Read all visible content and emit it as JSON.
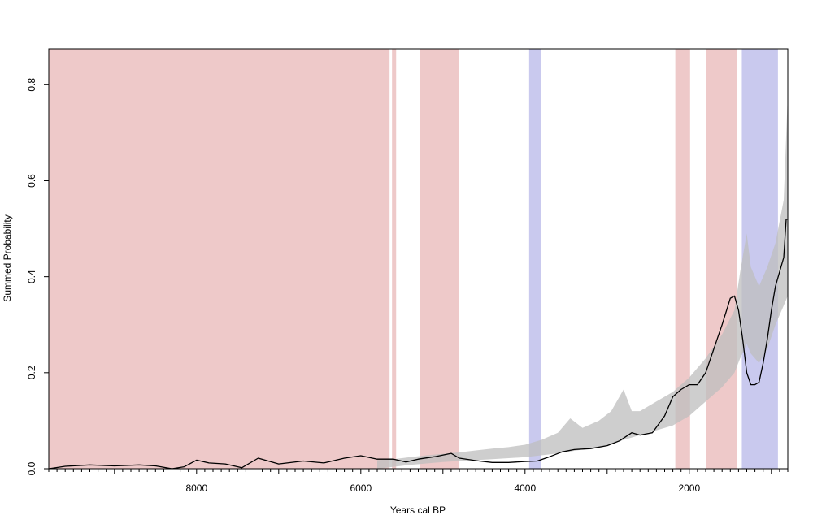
{
  "chart_data": {
    "type": "area",
    "title": "",
    "xlabel": "Years cal BP",
    "ylabel": "Summed Probability",
    "x_reversed": true,
    "xlim": [
      9800,
      800
    ],
    "ylim": [
      0,
      0.875
    ],
    "x_ticks": [
      {
        "value": 8000,
        "label": "8000"
      },
      {
        "value": 6000,
        "label": "6000"
      },
      {
        "value": 4000,
        "label": "4000"
      },
      {
        "value": 2000,
        "label": "2000"
      }
    ],
    "y_ticks": [
      {
        "value": 0.0,
        "label": "0.0"
      },
      {
        "value": 0.2,
        "label": "0.2"
      },
      {
        "value": 0.4,
        "label": "0.4"
      },
      {
        "value": 0.6,
        "label": "0.6"
      },
      {
        "value": 0.8,
        "label": "0.8"
      }
    ],
    "grid": false,
    "colors": {
      "below_envelope": "#eec9c9",
      "above_envelope": "#c9c9ee",
      "envelope": "#bdbdbd",
      "line": "#000000"
    },
    "shaded_periods": [
      {
        "start": 9800,
        "end": 5650,
        "kind": "below"
      },
      {
        "start": 5620,
        "end": 5570,
        "kind": "below"
      },
      {
        "start": 5280,
        "end": 4800,
        "kind": "below"
      },
      {
        "start": 3950,
        "end": 3800,
        "kind": "above"
      },
      {
        "start": 2170,
        "end": 1990,
        "kind": "below"
      },
      {
        "start": 1790,
        "end": 1420,
        "kind": "below"
      },
      {
        "start": 1360,
        "end": 920,
        "kind": "above"
      }
    ],
    "envelope": {
      "x": [
        5800,
        5600,
        5400,
        5200,
        5000,
        4800,
        4600,
        4400,
        4200,
        4000,
        3800,
        3600,
        3450,
        3300,
        3100,
        2950,
        2800,
        2700,
        2600,
        2400,
        2200,
        2000,
        1800,
        1600,
        1450,
        1380,
        1300,
        1250,
        1150,
        1050,
        950,
        850,
        800
      ],
      "upper": [
        0.018,
        0.02,
        0.024,
        0.028,
        0.031,
        0.034,
        0.038,
        0.042,
        0.045,
        0.05,
        0.06,
        0.075,
        0.105,
        0.085,
        0.1,
        0.12,
        0.165,
        0.12,
        0.12,
        0.14,
        0.16,
        0.19,
        0.23,
        0.28,
        0.33,
        0.41,
        0.49,
        0.42,
        0.38,
        0.42,
        0.47,
        0.56,
        0.78
      ],
      "lower": [
        0.0,
        0.004,
        0.008,
        0.011,
        0.014,
        0.016,
        0.018,
        0.02,
        0.022,
        0.024,
        0.028,
        0.032,
        0.036,
        0.04,
        0.045,
        0.05,
        0.06,
        0.065,
        0.07,
        0.08,
        0.09,
        0.11,
        0.14,
        0.17,
        0.2,
        0.23,
        0.26,
        0.24,
        0.22,
        0.25,
        0.3,
        0.34,
        0.36
      ]
    },
    "series": [
      {
        "x": [
          9800,
          9600,
          9300,
          9000,
          8700,
          8500,
          8300,
          8150,
          8000,
          7850,
          7650,
          7450,
          7250,
          7000,
          6700,
          6450,
          6200,
          6000,
          5800,
          5600,
          5450,
          5300,
          5100,
          4900,
          4800,
          4600,
          4400,
          4200,
          4000,
          3850,
          3700,
          3550,
          3400,
          3200,
          3000,
          2850,
          2700,
          2600,
          2450,
          2300,
          2200,
          2100,
          2000,
          1900,
          1800,
          1700,
          1600,
          1500,
          1450,
          1400,
          1350,
          1300,
          1250,
          1200,
          1150,
          1100,
          1050,
          1000,
          950,
          900,
          850,
          820,
          800
        ],
        "values": [
          0.0,
          0.005,
          0.008,
          0.006,
          0.008,
          0.006,
          0.0,
          0.004,
          0.018,
          0.012,
          0.01,
          0.002,
          0.022,
          0.01,
          0.016,
          0.012,
          0.022,
          0.027,
          0.02,
          0.02,
          0.014,
          0.02,
          0.025,
          0.032,
          0.022,
          0.017,
          0.013,
          0.013,
          0.015,
          0.016,
          0.025,
          0.035,
          0.04,
          0.042,
          0.048,
          0.058,
          0.075,
          0.07,
          0.075,
          0.11,
          0.15,
          0.165,
          0.175,
          0.175,
          0.2,
          0.25,
          0.3,
          0.355,
          0.36,
          0.33,
          0.27,
          0.2,
          0.175,
          0.175,
          0.18,
          0.22,
          0.27,
          0.33,
          0.38,
          0.41,
          0.44,
          0.52,
          0.52
        ]
      }
    ]
  }
}
